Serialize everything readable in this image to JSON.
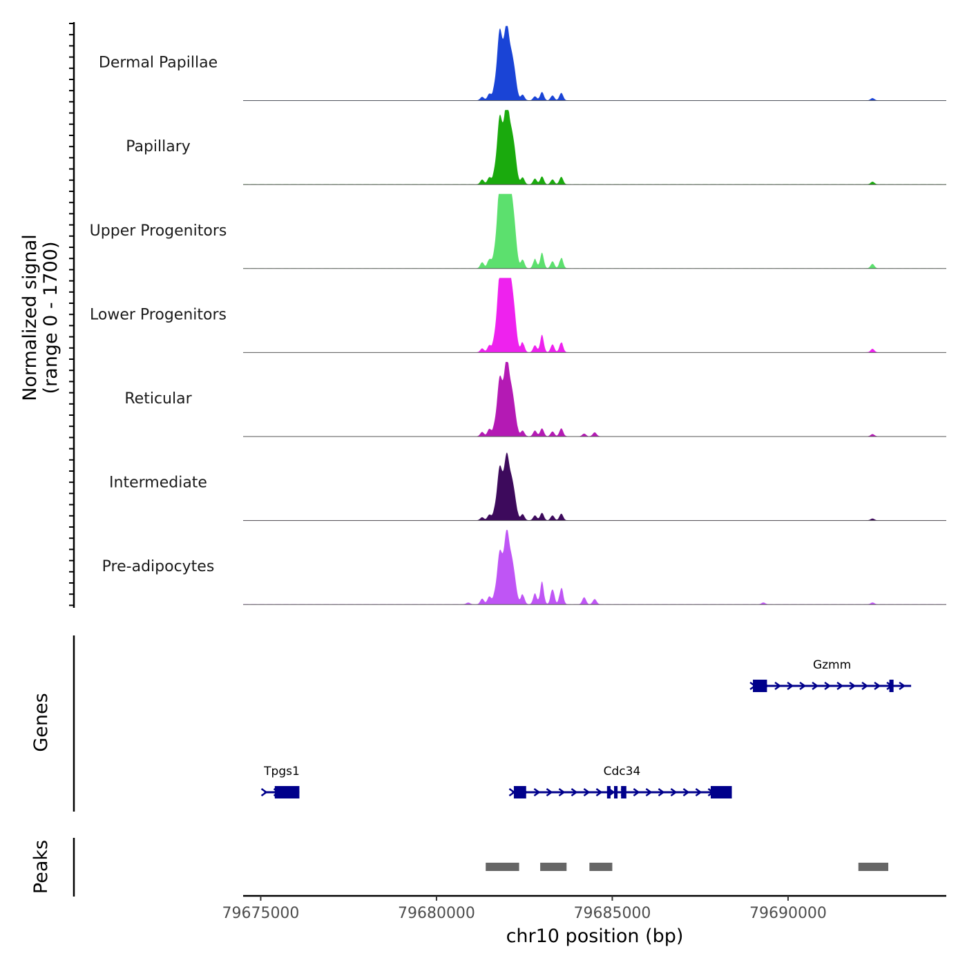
{
  "chart_data": {
    "type": "area",
    "title": "",
    "ylabel_line1": "Normalized signal",
    "ylabel_line2": "(range 0 - 1700)",
    "ylim": [
      0,
      1700
    ],
    "xlabel": "chr10 position (bp)",
    "xlim": [
      79674500,
      79694500
    ],
    "xticks": [
      79675000,
      79680000,
      79685000,
      79690000
    ],
    "xtick_labels": [
      "79675000",
      "79680000",
      "79685000",
      "79690000"
    ],
    "genes_label": "Genes",
    "peaks_label": "Peaks",
    "tracks": [
      {
        "name": "Dermal Papillae",
        "color": "#1a44d6",
        "bumps": [
          [
            79681300,
            80
          ],
          [
            79681500,
            140
          ],
          [
            79681800,
            1380
          ],
          [
            79682000,
            1000
          ],
          [
            79682100,
            780
          ],
          [
            79682250,
            300
          ],
          [
            79682450,
            130
          ],
          [
            79682800,
            90
          ],
          [
            79683000,
            190
          ],
          [
            79683300,
            110
          ],
          [
            79683550,
            170
          ],
          [
            79692400,
            50
          ]
        ]
      },
      {
        "name": "Papillary",
        "color": "#1aaa0d",
        "bumps": [
          [
            79681300,
            110
          ],
          [
            79681500,
            150
          ],
          [
            79681800,
            1320
          ],
          [
            79682000,
            1080
          ],
          [
            79682100,
            900
          ],
          [
            79682250,
            360
          ],
          [
            79682450,
            160
          ],
          [
            79682800,
            130
          ],
          [
            79683000,
            180
          ],
          [
            79683300,
            110
          ],
          [
            79683550,
            170
          ],
          [
            79692400,
            60
          ]
        ]
      },
      {
        "name": "Upper Progenitors",
        "color": "#5ce06e",
        "bumps": [
          [
            79681300,
            140
          ],
          [
            79681500,
            210
          ],
          [
            79681800,
            1640
          ],
          [
            79682000,
            1540
          ],
          [
            79682100,
            1200
          ],
          [
            79682250,
            430
          ],
          [
            79682450,
            200
          ],
          [
            79682800,
            200
          ],
          [
            79683000,
            330
          ],
          [
            79683300,
            160
          ],
          [
            79683550,
            240
          ],
          [
            79692400,
            100
          ]
        ]
      },
      {
        "name": "Lower Progenitors",
        "color": "#ee22ee",
        "bumps": [
          [
            79681300,
            90
          ],
          [
            79681500,
            150
          ],
          [
            79681800,
            1500
          ],
          [
            79682000,
            1480
          ],
          [
            79682100,
            1100
          ],
          [
            79682250,
            380
          ],
          [
            79682450,
            230
          ],
          [
            79682800,
            160
          ],
          [
            79683000,
            370
          ],
          [
            79683300,
            180
          ],
          [
            79683550,
            230
          ],
          [
            79692400,
            80
          ]
        ]
      },
      {
        "name": "Reticular",
        "color": "#b41ab4",
        "bumps": [
          [
            79681300,
            100
          ],
          [
            79681500,
            160
          ],
          [
            79681800,
            1130
          ],
          [
            79682000,
            1080
          ],
          [
            79682100,
            780
          ],
          [
            79682250,
            250
          ],
          [
            79682450,
            130
          ],
          [
            79682800,
            130
          ],
          [
            79683000,
            180
          ],
          [
            79683300,
            110
          ],
          [
            79683550,
            180
          ],
          [
            79684200,
            60
          ],
          [
            79684500,
            90
          ],
          [
            79692400,
            50
          ]
        ]
      },
      {
        "name": "Intermediate",
        "color": "#3d0a5c",
        "bumps": [
          [
            79681300,
            70
          ],
          [
            79681500,
            120
          ],
          [
            79681800,
            1040
          ],
          [
            79682000,
            860
          ],
          [
            79682100,
            720
          ],
          [
            79682250,
            240
          ],
          [
            79682450,
            140
          ],
          [
            79682800,
            110
          ],
          [
            79683000,
            170
          ],
          [
            79683300,
            110
          ],
          [
            79683550,
            150
          ],
          [
            79692400,
            40
          ]
        ]
      },
      {
        "name": "Pre-adipocytes",
        "color": "#bf55f5",
        "bumps": [
          [
            79680900,
            40
          ],
          [
            79681300,
            130
          ],
          [
            79681500,
            170
          ],
          [
            79681800,
            1010
          ],
          [
            79682000,
            1000
          ],
          [
            79682100,
            780
          ],
          [
            79682250,
            260
          ],
          [
            79682450,
            230
          ],
          [
            79682800,
            230
          ],
          [
            79683000,
            480
          ],
          [
            79683300,
            370
          ],
          [
            79683550,
            380
          ],
          [
            79684200,
            160
          ],
          [
            79684500,
            120
          ],
          [
            79689300,
            40
          ],
          [
            79692400,
            40
          ]
        ]
      }
    ],
    "genes": [
      {
        "name": "Gzmm",
        "start": 79689000,
        "end": 79693500,
        "row": 0,
        "strand": "+",
        "exons": [
          [
            79689000,
            79689400
          ],
          [
            79692880,
            79693000
          ]
        ]
      },
      {
        "name": "Tpgs1",
        "start": 79675100,
        "end": 79676100,
        "row": 1,
        "strand": "+",
        "exons": [
          [
            79675400,
            79676100
          ]
        ]
      },
      {
        "name": "Cdc34",
        "start": 79682150,
        "end": 79688400,
        "row": 1,
        "strand": "+",
        "exons": [
          [
            79682200,
            79682550
          ],
          [
            79684850,
            79684950
          ],
          [
            79685050,
            79685150
          ],
          [
            79685250,
            79685400
          ],
          [
            79687800,
            79688400
          ]
        ]
      }
    ],
    "peaks": [
      [
        79681400,
        79682350
      ],
      [
        79682950,
        79683700
      ],
      [
        79684350,
        79685000
      ],
      [
        79692000,
        79692850
      ]
    ]
  }
}
